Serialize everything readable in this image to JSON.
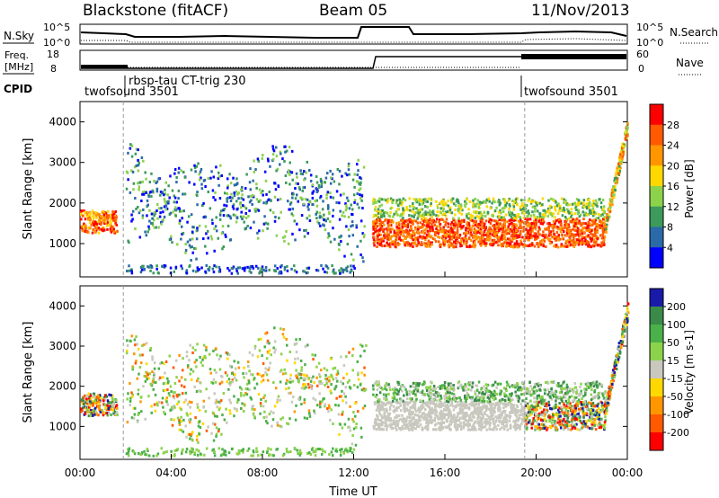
{
  "header": {
    "station": "Blackstone (fitACF)",
    "beam": "Beam 05",
    "date": "11/Nov/2013"
  },
  "status_panels": {
    "nsky_label": "N.Sky",
    "nsky_ticks": [
      "10^5",
      "10^0"
    ],
    "nsearch_label": "N.Search",
    "nsearch_ticks": [
      "10^5",
      "10^0"
    ],
    "freq_label_1": "Freq.",
    "freq_label_2": "[MHz]",
    "freq_ticks": [
      "18",
      "8"
    ],
    "nave_label": "Nave",
    "nave_ticks": [
      "60",
      "0"
    ],
    "cpid_label": "CPID",
    "cpid_segments": [
      {
        "label": "twofsound 3501",
        "start_hour": 0.0,
        "end_hour": 1.9
      },
      {
        "label": "rbsp-tau CT-trig 230",
        "start_hour": 1.9,
        "end_hour": 19.5
      },
      {
        "label": "twofsound 3501",
        "start_hour": 19.5,
        "end_hour": 24.0
      }
    ]
  },
  "chart_data": [
    {
      "type": "heatmap",
      "panel": "power",
      "ylabel": "Slant Range [km]",
      "xlabel": "",
      "xlim_hours": [
        0,
        24
      ],
      "ylim": [
        180,
        4500
      ],
      "yticks": [
        1000,
        2000,
        3000,
        4000
      ],
      "colorbar": {
        "label": "Power [dB]",
        "ticks": [
          "28",
          "24",
          "20",
          "16",
          "12",
          "8",
          "4"
        ],
        "colors": [
          "#ff0000",
          "#ff5a00",
          "#ff9600",
          "#ffd800",
          "#8cd24b",
          "#3c9a5a",
          "#2a6aa8",
          "#0000ff"
        ]
      },
      "features": [
        {
          "description": "strong band",
          "start_hour": 13.0,
          "end_hour": 23.0,
          "range_km": [
            900,
            1600
          ],
          "power_db": 28
        },
        {
          "description": "early band",
          "start_hour": 0.0,
          "end_hour": 1.6,
          "range_km": [
            1300,
            1800
          ],
          "power_db": 24
        },
        {
          "description": "scattered weak echoes",
          "start_hour": 2.0,
          "end_hour": 12.5,
          "range_km": [
            1000,
            3500
          ],
          "power_db": 8
        },
        {
          "description": "ground scatter layer",
          "start_hour": 13.0,
          "end_hour": 23.0,
          "range_km": [
            1600,
            2000
          ],
          "power_db": 12
        }
      ]
    },
    {
      "type": "heatmap",
      "panel": "velocity",
      "ylabel": "Slant Range [km]",
      "xlabel": "Time UT",
      "xlim_hours": [
        0,
        24
      ],
      "ylim": [
        180,
        4500
      ],
      "yticks": [
        1000,
        2000,
        3000,
        4000
      ],
      "x_tick_labels": [
        "00:00",
        "04:00",
        "08:00",
        "12:00",
        "16:00",
        "20:00",
        "00:00"
      ],
      "colorbar": {
        "label": "Velocity [m s-1]",
        "ticks": [
          "200",
          "100",
          "50",
          "15",
          "-15",
          "-50",
          "-100",
          "-200"
        ],
        "colors": [
          "#1a1aa8",
          "#3a8a4a",
          "#4ab04a",
          "#8cd24b",
          "#c8c8be",
          "#ffd800",
          "#ff9600",
          "#ff5a00",
          "#ff0000"
        ]
      }
    }
  ],
  "colors": {
    "ground_scatter": "#c8c8be",
    "cpid_divider": "#9a9a9a"
  }
}
